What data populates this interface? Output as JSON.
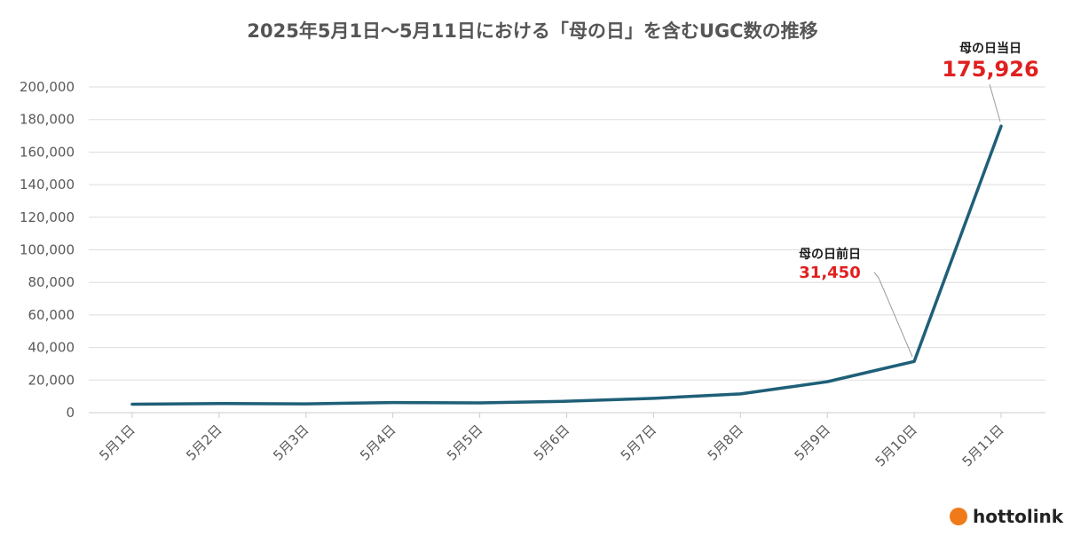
{
  "chart_data": {
    "type": "line",
    "title": "2025年5月1日～5月11日における「母の日」を含むUGC数の推移",
    "categories": [
      "5月1日",
      "5月2日",
      "5月3日",
      "5月4日",
      "5月5日",
      "5月6日",
      "5月7日",
      "5月8日",
      "5月9日",
      "5月10日",
      "5月11日"
    ],
    "series": [
      {
        "values": [
          5200,
          5600,
          5400,
          6200,
          6000,
          7000,
          8800,
          11500,
          19000,
          31450,
          175926
        ]
      }
    ],
    "ylim": [
      0,
      200000
    ],
    "yticks": [
      0,
      20000,
      40000,
      60000,
      80000,
      100000,
      120000,
      140000,
      160000,
      180000,
      200000
    ],
    "ytick_labels": [
      "0",
      "20,000",
      "40,000",
      "60,000",
      "80,000",
      "100,000",
      "120,000",
      "140,000",
      "160,000",
      "180,000",
      "200,000"
    ],
    "grid": true,
    "line_color": "#1f5f78",
    "annotations": [
      {
        "index": 9,
        "label": "母の日前日",
        "value": "31,450"
      },
      {
        "index": 10,
        "label": "母の日当日",
        "value": "175,926"
      }
    ]
  },
  "brand": {
    "name": "hottolink",
    "logo_color": "#f07a1a"
  }
}
